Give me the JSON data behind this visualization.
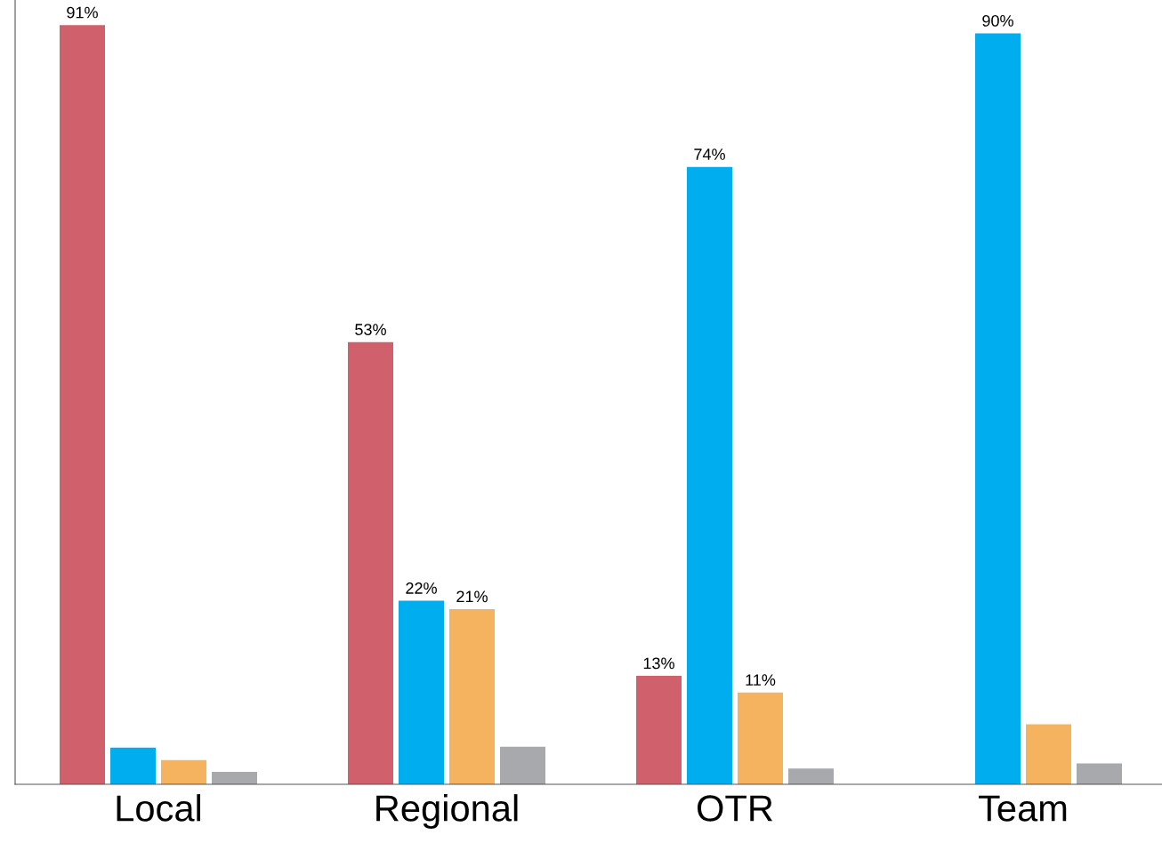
{
  "chart_data": {
    "type": "bar",
    "categories": [
      "Local",
      "Regional",
      "OTR",
      "Team"
    ],
    "series": [
      {
        "color": "#d0606b",
        "values": [
          91,
          53,
          13,
          null
        ],
        "value_labels": [
          "91%",
          "53%",
          "13%",
          null
        ]
      },
      {
        "color": "#00aeef",
        "values": [
          4.4,
          22,
          74,
          90
        ],
        "value_labels": [
          null,
          "22%",
          "74%",
          "90%"
        ]
      },
      {
        "color": "#f6b35f",
        "values": [
          2.9,
          21,
          11,
          7.2
        ],
        "value_labels": [
          null,
          "21%",
          "11%",
          null
        ]
      },
      {
        "color": "#a7a9ac",
        "values": [
          1.5,
          4.5,
          1.9,
          2.5
        ],
        "value_labels": [
          null,
          null,
          null,
          null
        ]
      }
    ],
    "ylim": [
      0,
      94
    ],
    "tick_labels": "x",
    "grid": false,
    "legend": false
  }
}
